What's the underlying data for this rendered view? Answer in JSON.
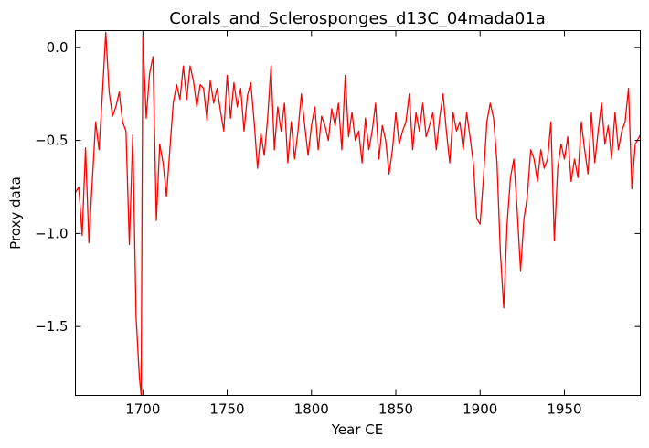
{
  "chart_data": {
    "type": "line",
    "title": "Corals_and_Sclerosponges_d13C_04mada01a",
    "xlabel": "Year CE",
    "ylabel": "Proxy data",
    "xlim": [
      1660,
      1995
    ],
    "ylim": [
      -1.87,
      0.09
    ],
    "xticks": [
      1700,
      1750,
      1800,
      1850,
      1900,
      1950
    ],
    "yticks": [
      0.0,
      -0.5,
      -1.0,
      -1.5
    ],
    "xtick_labels": [
      "1700",
      "1750",
      "1800",
      "1850",
      "1900",
      "1950"
    ],
    "ytick_labels": [
      "0.0",
      "−0.5",
      "−1.0",
      "−1.5"
    ],
    "grid": false,
    "series": [
      {
        "color": "#ff0000",
        "x": [
          1660,
          1662,
          1664,
          1666,
          1668,
          1670,
          1672,
          1674,
          1676,
          1678,
          1680,
          1682,
          1684,
          1686,
          1688,
          1690,
          1692,
          1694,
          1696,
          1698,
          1699,
          1700,
          1702,
          1704,
          1706,
          1708,
          1710,
          1712,
          1714,
          1716,
          1718,
          1720,
          1722,
          1724,
          1726,
          1728,
          1730,
          1732,
          1734,
          1736,
          1738,
          1740,
          1742,
          1744,
          1746,
          1748,
          1750,
          1752,
          1754,
          1756,
          1758,
          1760,
          1762,
          1764,
          1766,
          1768,
          1770,
          1772,
          1774,
          1776,
          1778,
          1780,
          1782,
          1784,
          1786,
          1788,
          1790,
          1792,
          1794,
          1796,
          1798,
          1800,
          1802,
          1804,
          1806,
          1808,
          1810,
          1812,
          1814,
          1816,
          1818,
          1820,
          1822,
          1824,
          1826,
          1828,
          1830,
          1832,
          1834,
          1836,
          1838,
          1840,
          1842,
          1844,
          1846,
          1848,
          1850,
          1852,
          1854,
          1856,
          1858,
          1860,
          1862,
          1864,
          1866,
          1868,
          1870,
          1872,
          1874,
          1876,
          1878,
          1880,
          1882,
          1884,
          1886,
          1888,
          1890,
          1892,
          1894,
          1896,
          1898,
          1900,
          1902,
          1904,
          1906,
          1908,
          1910,
          1912,
          1914,
          1916,
          1918,
          1920,
          1922,
          1924,
          1926,
          1928,
          1930,
          1932,
          1934,
          1936,
          1938,
          1940,
          1942,
          1944,
          1946,
          1948,
          1950,
          1952,
          1954,
          1956,
          1958,
          1960,
          1962,
          1964,
          1966,
          1968,
          1970,
          1972,
          1974,
          1976,
          1978,
          1980,
          1982,
          1984,
          1986,
          1988,
          1990,
          1992,
          1995
        ],
        "y": [
          -0.78,
          -0.75,
          -1.01,
          -0.54,
          -1.05,
          -0.72,
          -0.4,
          -0.55,
          -0.25,
          0.08,
          -0.24,
          -0.37,
          -0.32,
          -0.24,
          -0.4,
          -0.45,
          -1.06,
          -0.47,
          -1.45,
          -1.78,
          -1.87,
          0.06,
          -0.38,
          -0.14,
          -0.05,
          -0.93,
          -0.52,
          -0.62,
          -0.8,
          -0.55,
          -0.3,
          -0.2,
          -0.28,
          -0.1,
          -0.28,
          -0.1,
          -0.18,
          -0.32,
          -0.2,
          -0.22,
          -0.39,
          -0.18,
          -0.3,
          -0.22,
          -0.34,
          -0.45,
          -0.15,
          -0.38,
          -0.19,
          -0.32,
          -0.22,
          -0.45,
          -0.26,
          -0.19,
          -0.4,
          -0.65,
          -0.46,
          -0.58,
          -0.38,
          -0.1,
          -0.55,
          -0.32,
          -0.45,
          -0.3,
          -0.62,
          -0.4,
          -0.6,
          -0.45,
          -0.25,
          -0.42,
          -0.58,
          -0.42,
          -0.32,
          -0.55,
          -0.37,
          -0.42,
          -0.5,
          -0.33,
          -0.42,
          -0.3,
          -0.55,
          -0.15,
          -0.48,
          -0.35,
          -0.5,
          -0.45,
          -0.62,
          -0.38,
          -0.55,
          -0.45,
          -0.3,
          -0.6,
          -0.42,
          -0.5,
          -0.68,
          -0.55,
          -0.35,
          -0.52,
          -0.45,
          -0.4,
          -0.25,
          -0.55,
          -0.35,
          -0.45,
          -0.3,
          -0.48,
          -0.42,
          -0.35,
          -0.55,
          -0.38,
          -0.25,
          -0.45,
          -0.62,
          -0.35,
          -0.45,
          -0.4,
          -0.55,
          -0.35,
          -0.48,
          -0.62,
          -0.92,
          -0.95,
          -0.7,
          -0.4,
          -0.3,
          -0.38,
          -0.62,
          -1.1,
          -1.4,
          -0.95,
          -0.7,
          -0.6,
          -0.88,
          -1.2,
          -0.92,
          -0.8,
          -0.55,
          -0.6,
          -0.72,
          -0.55,
          -0.65,
          -0.6,
          -0.4,
          -1.04,
          -0.65,
          -0.52,
          -0.6,
          -0.48,
          -0.72,
          -0.6,
          -0.7,
          -0.4,
          -0.55,
          -0.68,
          -0.35,
          -0.62,
          -0.45,
          -0.3,
          -0.52,
          -0.42,
          -0.6,
          -0.35,
          -0.55,
          -0.45,
          -0.4,
          -0.22,
          -0.76,
          -0.52,
          -0.47
        ]
      }
    ]
  }
}
